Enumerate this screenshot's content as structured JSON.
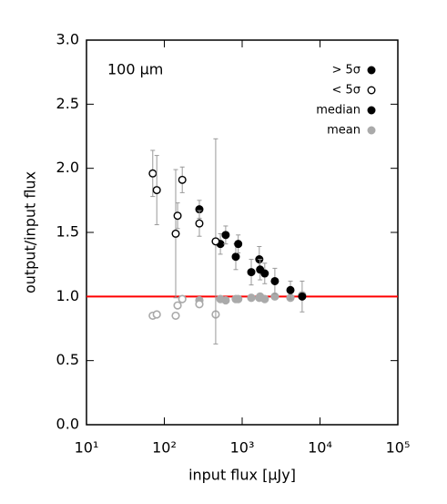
{
  "chart_data": {
    "type": "scatter",
    "annotation": "100 μm",
    "xlabel": "input flux [μJy]",
    "ylabel": "output/input flux",
    "xscale": "log",
    "xlim": [
      10,
      100000
    ],
    "xticks": [
      {
        "value": 10,
        "label": "10¹"
      },
      {
        "value": 100,
        "label": "10²"
      },
      {
        "value": 1000,
        "label": "10³"
      },
      {
        "value": 10000,
        "label": "10⁴"
      },
      {
        "value": 100000,
        "label": "10⁵"
      }
    ],
    "ylim": [
      0,
      3
    ],
    "yticks": [
      {
        "value": 0,
        "label": "0.0"
      },
      0.5,
      {
        "value": 1,
        "label": "1.0"
      },
      1.5,
      {
        "value": 2,
        "label": "2.0"
      },
      2.5,
      {
        "value": 3,
        "label": "3.0"
      }
    ],
    "hline": {
      "value": 1,
      "color": "#ff0000"
    },
    "median_name": "median",
    "median_color": "#000000",
    "mean_name": "mean",
    "mean_color": "#aaaaaa",
    "legend": "upper right",
    "series": [
      {
        "name": "> 5σ",
        "marker": "filled",
        "x": [
          282,
          525,
          614,
          828,
          890,
          1310,
          1660,
          1700,
          1950,
          2630,
          4170,
          5900
        ],
        "median": [
          1.68,
          1.41,
          1.48,
          1.31,
          1.41,
          1.19,
          1.29,
          1.21,
          1.18,
          1.12,
          1.05,
          1.0
        ],
        "err": [
          0.07,
          0.08,
          0.07,
          0.1,
          0.07,
          0.1,
          0.1,
          0.08,
          0.08,
          0.1,
          0.07,
          0.12
        ],
        "mean": [
          0.97,
          0.98,
          0.97,
          0.98,
          0.98,
          0.99,
          0.99,
          1.0,
          0.98,
          1.0,
          0.99,
          1.01
        ]
      },
      {
        "name": "< 5σ",
        "marker": "open",
        "x": [
          71,
          80,
          140,
          148,
          170,
          282,
          457
        ],
        "median": [
          1.96,
          1.83,
          1.49,
          1.63,
          1.91,
          1.57,
          1.43
        ],
        "err": [
          0.18,
          0.27,
          0.5,
          0.1,
          0.1,
          0.1,
          0.8
        ],
        "mean": [
          0.85,
          0.86,
          0.85,
          0.93,
          0.98,
          0.94,
          0.86
        ]
      }
    ]
  }
}
